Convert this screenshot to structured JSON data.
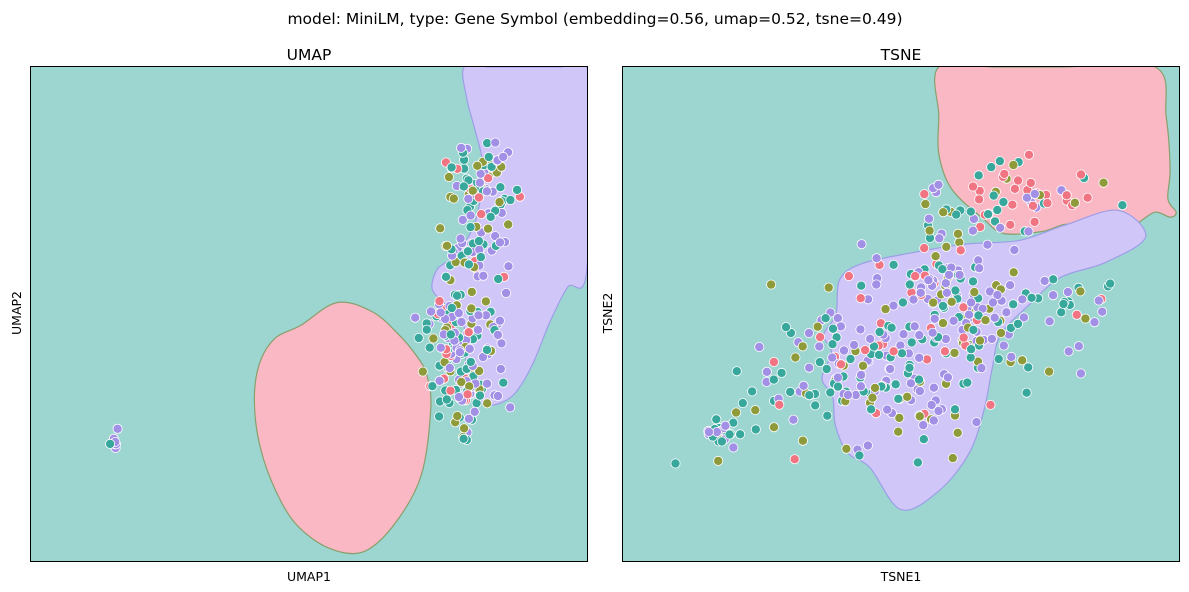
{
  "figure": {
    "suptitle": "model: MiniLM, type: Gene Symbol (embedding=0.56, umap=0.52, tsne=0.49)"
  },
  "colors": {
    "region_teal": "#9dd5d1",
    "region_pink": "#f9b8c4",
    "region_lavender": "#d1c6f8",
    "boundary_pink": "#88a06c",
    "boundary_lavender": "#9d9ee8",
    "points": [
      "#f07482",
      "#38a89d",
      "#a28fe6",
      "#8f9a3a"
    ]
  },
  "chart_data": [
    {
      "type": "scatter",
      "title": "UMAP",
      "xlabel": "UMAP1",
      "ylabel": "UMAP2",
      "xlim": [
        0,
        100
      ],
      "ylim": [
        0,
        100
      ],
      "ticks": "none",
      "grid": false,
      "legend": "none",
      "regions": [
        {
          "class": "teal",
          "area": "background"
        },
        {
          "class": "pink",
          "boundary": [
            [
              48.5,
              47.7
            ],
            [
              44,
              45.2
            ],
            [
              41.3,
              40.6
            ],
            [
              40.2,
              34
            ],
            [
              40.8,
              25.3
            ],
            [
              43.2,
              16.3
            ],
            [
              47.4,
              7.8
            ],
            [
              53.6,
              2.6
            ],
            [
              59.9,
              1.9
            ],
            [
              65.6,
              7.8
            ],
            [
              70.2,
              17.4
            ],
            [
              71.9,
              30.9
            ],
            [
              71.2,
              37.6
            ],
            [
              69.5,
              41.3
            ],
            [
              66,
              46
            ],
            [
              61.3,
              50.5
            ],
            [
              55,
              52.3
            ]
          ]
        },
        {
          "class": "lavender",
          "boundary": [
            [
              77.9,
              100
            ],
            [
              82.6,
              100
            ],
            [
              89.3,
              100
            ],
            [
              95.4,
              100
            ],
            [
              100,
              100
            ],
            [
              100,
              59.3
            ],
            [
              96.5,
              55.4
            ],
            [
              93.3,
              48.3
            ],
            [
              90.2,
              39.8
            ],
            [
              87.1,
              34
            ],
            [
              84.2,
              31.9
            ],
            [
              81.5,
              31.7
            ],
            [
              79.5,
              34
            ],
            [
              78.2,
              40.6
            ],
            [
              77.9,
              47.5
            ],
            [
              75.6,
              51.1
            ],
            [
              73.5,
              53
            ],
            [
              72.1,
              55.4
            ],
            [
              73.1,
              59.1
            ],
            [
              75.6,
              61.3
            ],
            [
              79,
              66.3
            ],
            [
              80.7,
              72.4
            ],
            [
              81.2,
              80.6
            ],
            [
              79.8,
              87.5
            ],
            [
              78.4,
              93.5
            ]
          ]
        }
      ],
      "clusters": [
        {
          "center": [
            14.8,
            25.3
          ],
          "spread": [
            0.5,
            1.9
          ],
          "count": [
            0,
            1,
            6,
            0
          ]
        },
        {
          "center": [
            81.2,
            76.4
          ],
          "spread": [
            2.8,
            4.5
          ],
          "count": [
            7,
            24,
            20,
            15
          ]
        },
        {
          "center": [
            78.7,
            63.5
          ],
          "spread": [
            2.6,
            4.3
          ],
          "count": [
            3,
            18,
            16,
            7
          ]
        },
        {
          "center": [
            76.8,
            45.7
          ],
          "spread": [
            3.1,
            4.7
          ],
          "count": [
            11,
            34,
            44,
            16
          ]
        },
        {
          "center": [
            77.6,
            34.6
          ],
          "spread": [
            2.2,
            2.1
          ],
          "count": [
            5,
            12,
            11,
            6
          ]
        },
        {
          "center": [
            84.6,
            45.1
          ],
          "spread": [
            0.8,
            6.5
          ],
          "count": [
            0,
            0,
            10,
            0
          ]
        },
        {
          "center": [
            77.4,
            28.4
          ],
          "spread": [
            2.1,
            2.7
          ],
          "count": [
            0,
            7,
            4,
            5
          ]
        }
      ]
    },
    {
      "type": "scatter",
      "title": "TSNE",
      "xlabel": "TSNE1",
      "ylabel": "TSNE2",
      "xlim": [
        0,
        100
      ],
      "ylim": [
        0,
        100
      ],
      "ticks": "none",
      "grid": false,
      "legend": "none",
      "regions": [
        {
          "class": "teal",
          "area": "background"
        },
        {
          "class": "pink",
          "boundary": [
            [
              56.8,
              100
            ],
            [
              66.9,
              100
            ],
            [
              79.1,
              100
            ],
            [
              95.7,
              100
            ],
            [
              97.7,
              89.9
            ],
            [
              98.4,
              79.4
            ],
            [
              98,
              73.3
            ],
            [
              99.5,
              70.6
            ],
            [
              98.4,
              69.6
            ],
            [
              95.7,
              70.6
            ],
            [
              92.6,
              68.4
            ],
            [
              89.6,
              66.3
            ],
            [
              84.9,
              66.1
            ],
            [
              80.2,
              68.2
            ],
            [
              75.4,
              66.7
            ],
            [
              68.5,
              66.3
            ],
            [
              64.9,
              69.2
            ],
            [
              59.1,
              75.3
            ],
            [
              56.8,
              82.4
            ],
            [
              56.8,
              90.1
            ]
          ]
        },
        {
          "class": "lavender",
          "boundary": [
            [
              38.3,
              49.9
            ],
            [
              39,
              57
            ],
            [
              43,
              60.2
            ],
            [
              51.6,
              62.3
            ],
            [
              61.2,
              64.1
            ],
            [
              71.3,
              64.9
            ],
            [
              79.5,
              68
            ],
            [
              89,
              71
            ],
            [
              94,
              65.6
            ],
            [
              86.7,
              60.4
            ],
            [
              78.7,
              57.4
            ],
            [
              72.9,
              51.7
            ],
            [
              67.9,
              45.8
            ],
            [
              66.4,
              39
            ],
            [
              64.9,
              30.4
            ],
            [
              62.2,
              21.7
            ],
            [
              56.8,
              14.2
            ],
            [
              50,
              10.4
            ],
            [
              44.4,
              18.9
            ],
            [
              40.4,
              21.9
            ],
            [
              38.2,
              27.5
            ],
            [
              37.7,
              33.2
            ],
            [
              35.8,
              37
            ],
            [
              37.5,
              42.2
            ],
            [
              36.1,
              45.8
            ]
          ]
        }
      ],
      "clusters": [
        {
          "center": [
            17.5,
            25.7
          ],
          "spread": [
            1.8,
            1.4
          ],
          "count": [
            0,
            13,
            10,
            2
          ]
        },
        {
          "center": [
            73,
            75.7
          ],
          "spread": [
            6.5,
            3.1
          ],
          "count": [
            22,
            5,
            3,
            6
          ]
        },
        {
          "center": [
            59.3,
            70.4
          ],
          "spread": [
            5.8,
            3.6
          ],
          "count": [
            3,
            12,
            10,
            4
          ]
        },
        {
          "center": [
            61.7,
            51.8
          ],
          "spread": [
            8.2,
            7.6
          ],
          "count": [
            14,
            38,
            62,
            24
          ]
        },
        {
          "center": [
            48.2,
            42.4
          ],
          "spread": [
            9.9,
            8.3
          ],
          "count": [
            14,
            36,
            48,
            23
          ]
        },
        {
          "center": [
            38.3,
            33.8
          ],
          "spread": [
            10.2,
            6.7
          ],
          "count": [
            6,
            28,
            23,
            15
          ]
        },
        {
          "center": [
            80.3,
            50.8
          ],
          "spread": [
            5.3,
            4.2
          ],
          "count": [
            2,
            10,
            5,
            3
          ]
        }
      ]
    }
  ]
}
